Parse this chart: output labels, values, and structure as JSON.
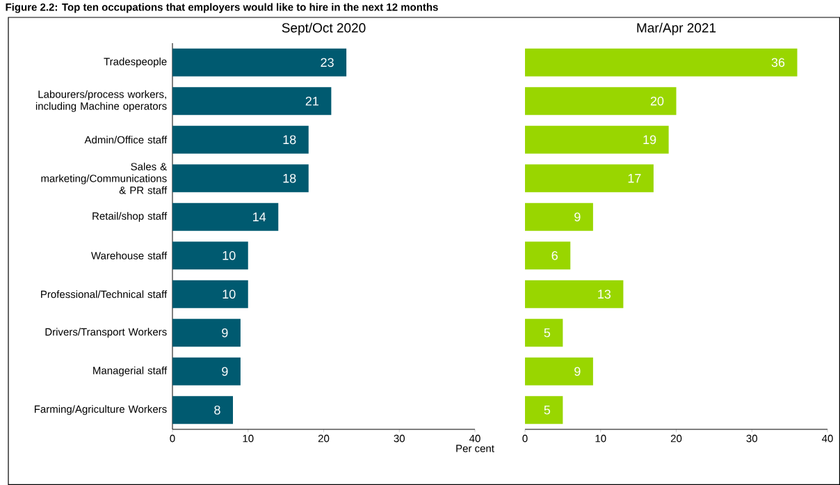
{
  "chart_data": [
    {
      "type": "bar",
      "orientation": "horizontal",
      "title": "Sept/Oct 2020",
      "xlabel": "Per cent",
      "annotations": [
        "Figure 2.2: Top ten occupations that employers would like to hire in the next 12 months"
      ],
      "categories": [
        "Tradespeople",
        "Labourers/process workers, including Machine operators",
        "Admin/Office staff",
        "Sales & marketing/Communications & PR staff",
        "Retail/shop staff",
        "Warehouse staff",
        "Professional/Technical staff",
        "Drivers/Transport Workers",
        "Managerial staff",
        "Farming/Agriculture Workers"
      ],
      "values": [
        23,
        21,
        18,
        18,
        14,
        10,
        10,
        9,
        9,
        8
      ],
      "color": "#005a70",
      "data_labels": true,
      "xlim": [
        0,
        40
      ],
      "xticks": [
        0,
        10,
        20,
        30,
        40
      ]
    },
    {
      "type": "bar",
      "orientation": "horizontal",
      "title": "Mar/Apr 2021",
      "tick_labels": "x",
      "categories": [
        null,
        null,
        null,
        null,
        null,
        null,
        null,
        null,
        null,
        null
      ],
      "values": [
        36,
        20,
        19,
        17,
        9,
        6,
        13,
        5,
        9,
        5
      ],
      "color": "#99d600",
      "data_labels": true,
      "xlim": [
        0,
        40
      ],
      "xticks": [
        0,
        10,
        20,
        30,
        40
      ]
    }
  ]
}
